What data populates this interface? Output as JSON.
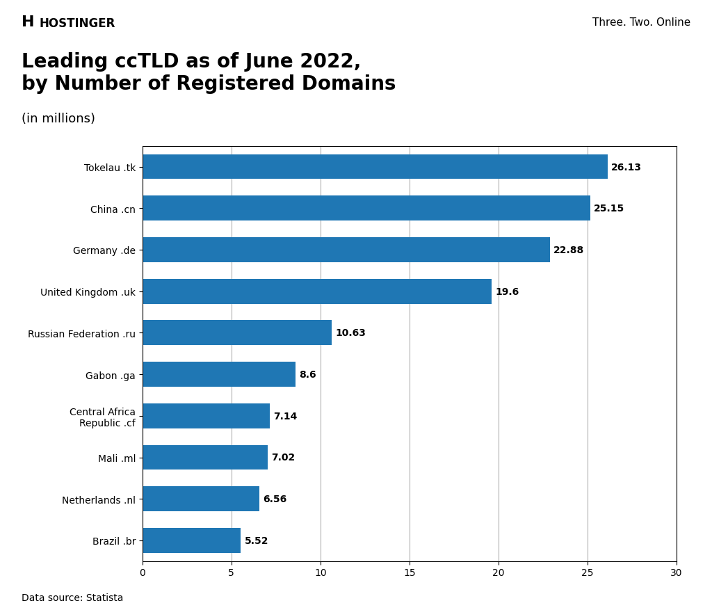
{
  "chart_data": {
    "type": "bar",
    "orientation": "horizontal",
    "title": "Leading ccTLD as of June 2022,\nby Number of Registered Domains",
    "subtitle": "(in millions)",
    "categories": [
      "Tokelau .tk",
      "China .cn",
      "Germany .de",
      "United Kingdom .uk",
      "Russian Federation .ru",
      "Gabon .ga",
      "Central Africa\nRepublic .cf",
      "Mali .ml",
      "Netherlands .nl",
      "Brazil .br"
    ],
    "values": [
      26.13,
      25.15,
      22.88,
      19.6,
      10.63,
      8.6,
      7.14,
      7.02,
      6.56,
      5.52
    ],
    "xlim": [
      0,
      30
    ],
    "xticks": [
      0,
      5,
      10,
      15,
      20,
      25,
      30
    ],
    "grid": true,
    "data_labels": true,
    "annotations": [
      "H",
      "HOSTINGER",
      "Three. Two. Online",
      "Data source: Statista"
    ]
  }
}
